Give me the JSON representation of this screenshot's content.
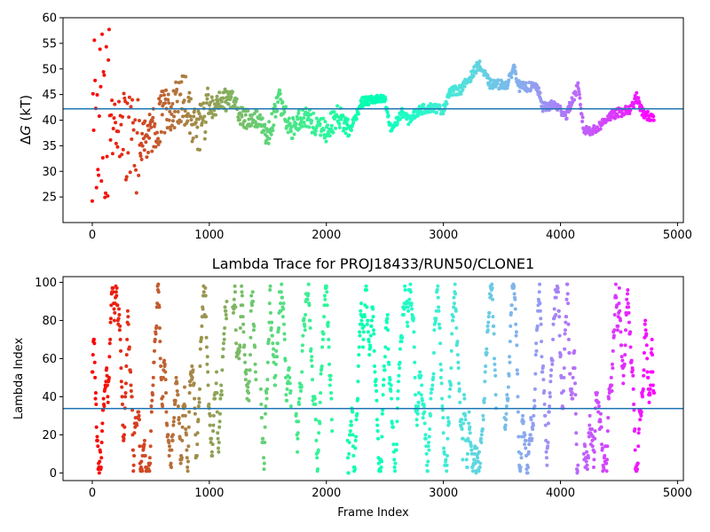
{
  "chart_data": [
    {
      "type": "scatter",
      "title": "",
      "xlabel": "",
      "ylabel_prefix": "Δ",
      "ylabel_var": "G",
      "ylabel_unit": " (kT)",
      "xlim": [
        -250,
        5050
      ],
      "ylim": [
        20,
        60
      ],
      "xticks": [
        0,
        1000,
        2000,
        3000,
        4000,
        5000
      ],
      "yticks": [
        25,
        30,
        35,
        40,
        45,
        50,
        55,
        60
      ],
      "xtick_labels": [
        "0",
        "1000",
        "2000",
        "3000",
        "4000",
        "5000"
      ],
      "ytick_labels": [
        "25",
        "30",
        "35",
        "40",
        "45",
        "50",
        "55",
        "60"
      ],
      "hline": 42.2,
      "hline_color": "#1f77b4",
      "colormap": "rainbow (reversed: early frames red, late frames violet)",
      "frame_count": 4800,
      "trace_keypoints": [
        [
          0,
          40
        ],
        [
          100,
          42
        ],
        [
          200,
          38
        ],
        [
          300,
          36
        ],
        [
          400,
          35
        ],
        [
          500,
          38
        ],
        [
          600,
          41
        ],
        [
          700,
          43
        ],
        [
          800,
          44
        ],
        [
          900,
          38
        ],
        [
          1000,
          42
        ],
        [
          1100,
          44
        ],
        [
          1200,
          44
        ],
        [
          1300,
          40
        ],
        [
          1400,
          41
        ],
        [
          1500,
          37
        ],
        [
          1600,
          44
        ],
        [
          1700,
          38
        ],
        [
          1800,
          41
        ],
        [
          1900,
          39
        ],
        [
          2000,
          38
        ],
        [
          2100,
          41
        ],
        [
          2200,
          38
        ],
        [
          2300,
          43.5
        ],
        [
          2400,
          44
        ],
        [
          2500,
          44
        ],
        [
          2550,
          38
        ],
        [
          2650,
          41.5
        ],
        [
          2700,
          40
        ],
        [
          2800,
          42
        ],
        [
          2900,
          42.5
        ],
        [
          3000,
          42
        ],
        [
          3050,
          45.5
        ],
        [
          3150,
          46
        ],
        [
          3250,
          49
        ],
        [
          3300,
          51
        ],
        [
          3400,
          47
        ],
        [
          3550,
          47
        ],
        [
          3600,
          50.5
        ],
        [
          3650,
          46.5
        ],
        [
          3800,
          46.5
        ],
        [
          3850,
          42.5
        ],
        [
          3950,
          43
        ],
        [
          4050,
          41
        ],
        [
          4150,
          46.5
        ],
        [
          4200,
          38
        ],
        [
          4300,
          38
        ],
        [
          4400,
          40.5
        ],
        [
          4500,
          41.5
        ],
        [
          4600,
          42
        ],
        [
          4650,
          44.5
        ],
        [
          4700,
          41.5
        ],
        [
          4800,
          40
        ]
      ]
    },
    {
      "type": "scatter",
      "title": "Lambda Trace for PROJ18433/RUN50/CLONE1",
      "xlabel": "Frame Index",
      "ylabel": "Lambda Index",
      "xlim": [
        -250,
        5050
      ],
      "ylim": [
        -4,
        103
      ],
      "xticks": [
        0,
        1000,
        2000,
        3000,
        4000,
        5000
      ],
      "yticks": [
        0,
        20,
        40,
        60,
        80,
        100
      ],
      "xtick_labels": [
        "0",
        "1000",
        "2000",
        "3000",
        "4000",
        "5000"
      ],
      "ytick_labels": [
        "0",
        "20",
        "40",
        "60",
        "80",
        "100"
      ],
      "hline": 33.8,
      "hline_color": "#1f77b4",
      "lambda_range": [
        0,
        99
      ],
      "frame_count": 4800,
      "colormap": "rainbow (reversed: early frames red, late frames violet)"
    }
  ]
}
